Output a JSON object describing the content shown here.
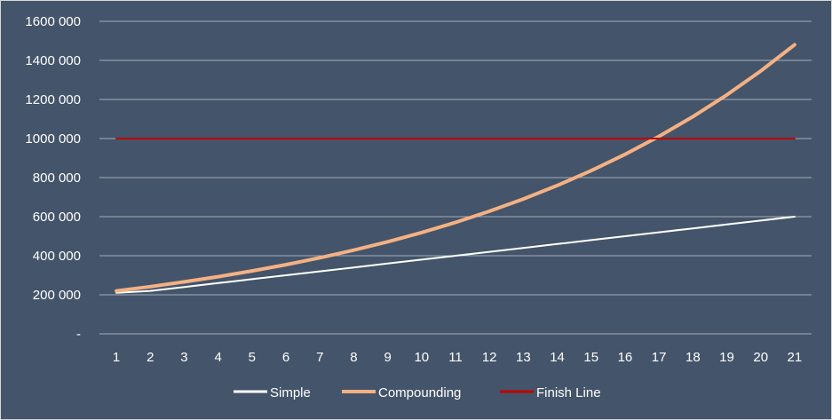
{
  "chart_data": {
    "type": "line",
    "title": "",
    "xlabel": "",
    "ylabel": "",
    "x": [
      1,
      2,
      3,
      4,
      5,
      6,
      7,
      8,
      9,
      10,
      11,
      12,
      13,
      14,
      15,
      16,
      17,
      18,
      19,
      20,
      21
    ],
    "y_tick_labels": [
      "-",
      "200 000",
      "400 000",
      "600 000",
      "800 000",
      "1000 000",
      "1200 000",
      "1400 000",
      "1600 000"
    ],
    "y_ticks": [
      0,
      200000,
      400000,
      600000,
      800000,
      1000000,
      1200000,
      1400000,
      1600000
    ],
    "ylim": [
      0,
      1600000
    ],
    "grid": "horizontal",
    "legend_position": "bottom",
    "series": [
      {
        "name": "Simple",
        "color": "#ffffff",
        "values": [
          210000,
          220000,
          240000,
          260000,
          280000,
          300000,
          320000,
          340000,
          360000,
          380000,
          400000,
          420000,
          440000,
          460000,
          480000,
          500000,
          520000,
          540000,
          560000,
          580000,
          600000
        ]
      },
      {
        "name": "Compounding",
        "color": "#f4b183",
        "values": [
          220000,
          242000,
          266200,
          292820,
          322102,
          354312,
          389743,
          428718,
          471590,
          518748,
          570623,
          627686,
          690454,
          759500,
          835450,
          918995,
          1010894,
          1111983,
          1223182,
          1345500,
          1480050
        ]
      },
      {
        "name": "Finish Line",
        "color": "#c00000",
        "values": [
          1000000,
          1000000,
          1000000,
          1000000,
          1000000,
          1000000,
          1000000,
          1000000,
          1000000,
          1000000,
          1000000,
          1000000,
          1000000,
          1000000,
          1000000,
          1000000,
          1000000,
          1000000,
          1000000,
          1000000,
          1000000
        ]
      }
    ]
  }
}
